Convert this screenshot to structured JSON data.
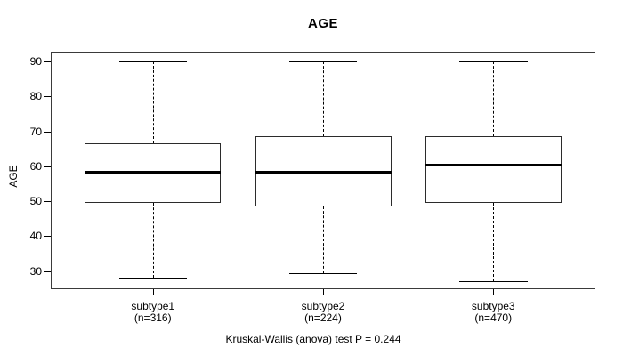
{
  "chart_data": {
    "type": "boxplot",
    "title": "AGE",
    "ylabel": "AGE",
    "xlabel": "",
    "caption": "Kruskal-Wallis (anova) test P = 0.244",
    "categories": [
      "subtype1",
      "subtype2",
      "subtype3"
    ],
    "category_sublabels": [
      "(n=316)",
      "(n=224)",
      "(n=470)"
    ],
    "series": [
      {
        "name": "subtype1",
        "n_label": "(n=316)",
        "whisker_low": 28,
        "q1": 49.5,
        "median": 58.5,
        "q3": 66.5,
        "whisker_high": 90
      },
      {
        "name": "subtype2",
        "n_label": "(n=224)",
        "whisker_low": 29.5,
        "q1": 48.5,
        "median": 58.5,
        "q3": 68.5,
        "whisker_high": 90
      },
      {
        "name": "subtype3",
        "n_label": "(n=470)",
        "whisker_low": 27,
        "q1": 49.5,
        "median": 60.5,
        "q3": 68.5,
        "whisker_high": 90
      }
    ],
    "y_ticks": [
      30,
      40,
      50,
      60,
      70,
      80,
      90
    ],
    "ylim": [
      24.8,
      92.8
    ],
    "grid": false,
    "legend": null,
    "colors": {
      "background": "#ffffff",
      "box_fill": "#ffffff",
      "line": "#000000",
      "median": "#000000",
      "text": "#000000",
      "frame": "#3a3a3a"
    }
  }
}
